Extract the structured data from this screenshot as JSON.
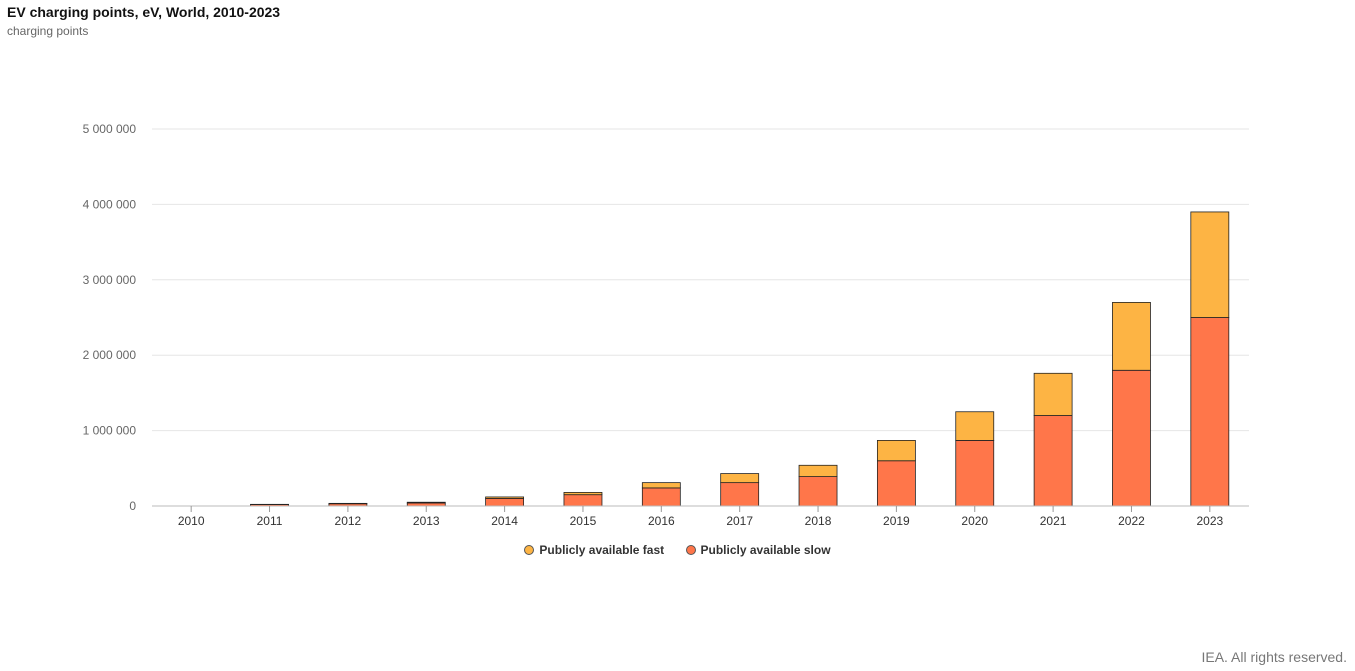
{
  "title": "EV charging points, eV, World, 2010-2023",
  "subtitle": "charging points",
  "credit": "IEA. All rights reserved.",
  "colors": {
    "fast": "#FDB444",
    "slow": "#FF764A"
  },
  "chart_data": {
    "type": "bar",
    "stacked": true,
    "categories": [
      "2010",
      "2011",
      "2012",
      "2013",
      "2014",
      "2015",
      "2016",
      "2017",
      "2018",
      "2019",
      "2020",
      "2021",
      "2022",
      "2023"
    ],
    "series": [
      {
        "name": "Publicly available slow",
        "values": [
          1000,
          20000,
          30000,
          40000,
          100000,
          150000,
          240000,
          310000,
          390000,
          600000,
          870000,
          1200000,
          1800000,
          2500000
        ]
      },
      {
        "name": "Publicly available fast",
        "values": [
          0,
          2000,
          5000,
          10000,
          20000,
          30000,
          70000,
          120000,
          150000,
          270000,
          380000,
          560000,
          900000,
          1400000
        ]
      }
    ],
    "yticks": [
      "0",
      "1 000 000",
      "2 000 000",
      "3 000 000",
      "4 000 000",
      "5 000 000"
    ],
    "ylim": [
      0,
      5000000
    ],
    "grid": true,
    "legend_position": "bottom-center",
    "legend": [
      "Publicly available fast",
      "Publicly available slow"
    ]
  }
}
